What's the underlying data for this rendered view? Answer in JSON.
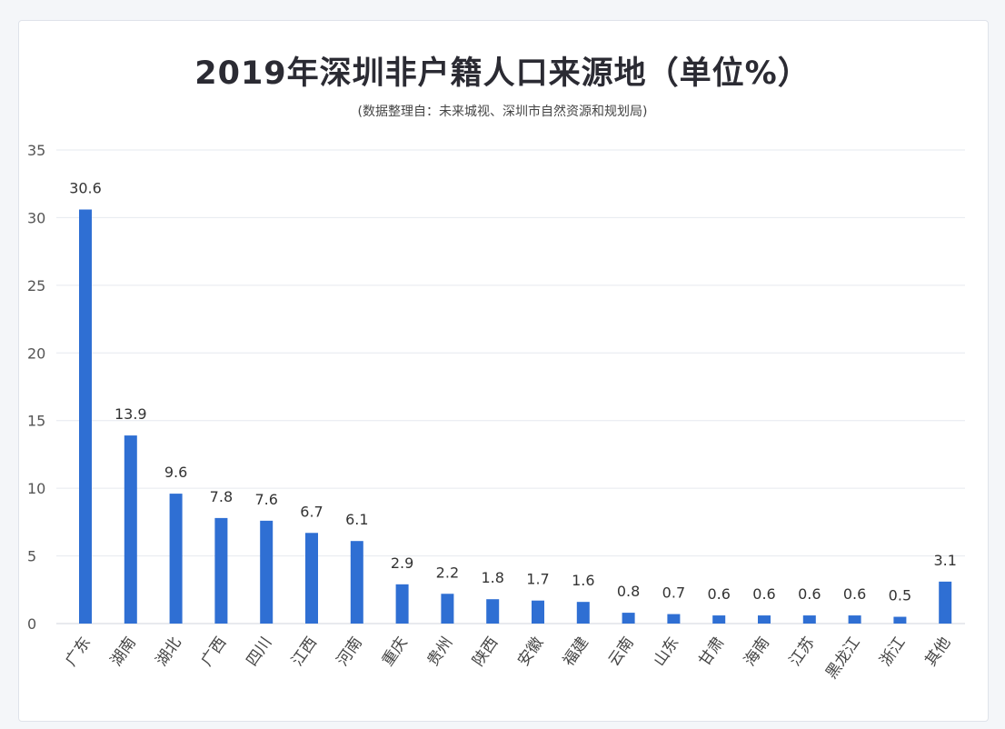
{
  "chart_data": {
    "type": "bar",
    "title": "2019年深圳非户籍人口来源地（单位%）",
    "subtitle": "(数据整理自：未来城视、深圳市自然资源和规划局)",
    "categories": [
      "广东",
      "湖南",
      "湖北",
      "广西",
      "四川",
      "江西",
      "河南",
      "重庆",
      "贵州",
      "陕西",
      "安徽",
      "福建",
      "云南",
      "山东",
      "甘肃",
      "海南",
      "江苏",
      "黑龙江",
      "浙江",
      "其他"
    ],
    "values": [
      30.6,
      13.9,
      9.6,
      7.8,
      7.6,
      6.7,
      6.1,
      2.9,
      2.2,
      1.8,
      1.7,
      1.6,
      0.8,
      0.7,
      0.6,
      0.6,
      0.6,
      0.6,
      0.5,
      3.1
    ],
    "data_labels": [
      "30.6",
      "13.9",
      "9.6",
      "7.8",
      "7.6",
      "6.7",
      "6.1",
      "2.9",
      "2.2",
      "1.8",
      "1.7",
      "1.6",
      "0.8",
      "0.7",
      "0.6",
      "0.6",
      "0.6",
      "0.6",
      "0.5",
      "3.1"
    ],
    "ylim": [
      0,
      35
    ],
    "yticks": [
      0,
      5,
      10,
      15,
      20,
      25,
      30,
      35
    ],
    "xlabel": "",
    "ylabel": "",
    "grid": true,
    "bar_color": "#2f6fd3"
  }
}
